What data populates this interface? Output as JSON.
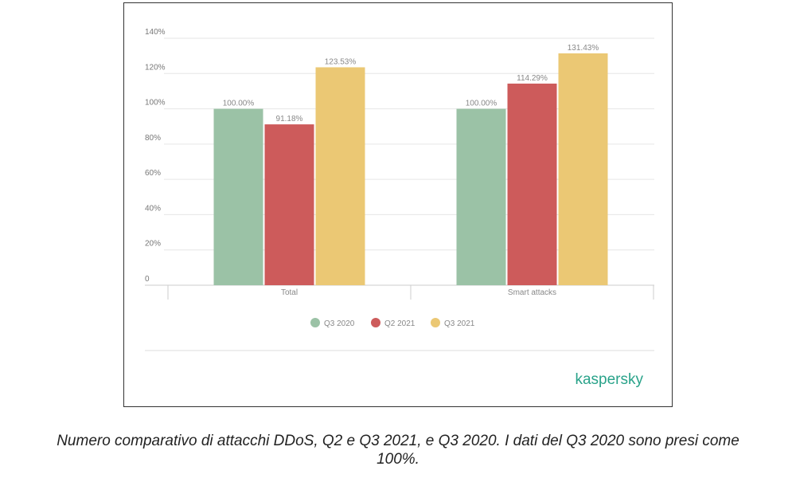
{
  "chart_data": {
    "type": "bar",
    "categories": [
      "Total",
      "Smart attacks"
    ],
    "series": [
      {
        "name": "Q3 2020",
        "color": "#9bc2a6",
        "values": [
          100.0,
          100.0
        ],
        "labels": [
          "100.00%",
          "100.00%"
        ]
      },
      {
        "name": "Q2 2021",
        "color": "#cd5b5b",
        "values": [
          91.18,
          114.29
        ],
        "labels": [
          "91.18%",
          "114.29%"
        ]
      },
      {
        "name": "Q3 2021",
        "color": "#ebc874",
        "values": [
          123.53,
          131.43
        ],
        "labels": [
          "123.53%",
          "131.43%"
        ]
      }
    ],
    "ylim": [
      0,
      140
    ],
    "yticks": [
      0,
      20,
      40,
      60,
      80,
      100,
      120,
      140
    ],
    "ytick_labels": [
      "0",
      "20%",
      "40%",
      "60%",
      "80%",
      "100%",
      "120%",
      "140%"
    ],
    "grid": true,
    "legend": "bottom-center",
    "title": "",
    "xlabel": "",
    "ylabel": ""
  },
  "brand": {
    "logo_text": "kaspersky",
    "color": "#2aa38a"
  },
  "caption": {
    "line1": "Numero comparativo di attacchi DDoS, Q2 e Q3 2021, e Q3 2020. I dati del Q3 2020 sono presi come",
    "line2": "100%."
  }
}
